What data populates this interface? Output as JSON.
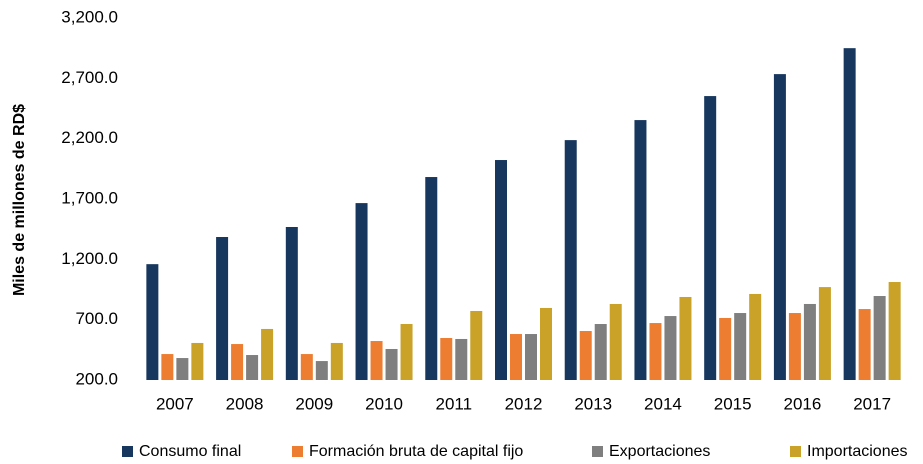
{
  "chart_data": {
    "type": "bar",
    "y_label": "Miles de millones de  RD$",
    "categories": [
      "2007",
      "2008",
      "2009",
      "2010",
      "2011",
      "2012",
      "2013",
      "2014",
      "2015",
      "2016",
      "2017"
    ],
    "series": [
      {
        "name": "Consumo final",
        "color": "#17375e",
        "values": [
          1160,
          1385,
          1468,
          1666,
          1882,
          2023,
          2188,
          2354,
          2553,
          2735,
          2950
        ]
      },
      {
        "name": "Formación bruta  de capital fijo",
        "color": "#ed7d31",
        "values": [
          415,
          498,
          415,
          523,
          548,
          581,
          606,
          672,
          714,
          755,
          788
        ]
      },
      {
        "name": "Exportaciones",
        "color": "#7f7f7f",
        "values": [
          382,
          407,
          357,
          457,
          540,
          581,
          664,
          730,
          755,
          830,
          896
        ]
      },
      {
        "name": "Importaciones",
        "color": "#c9a227",
        "values": [
          507,
          623,
          507,
          664,
          772,
          797,
          830,
          888,
          913,
          970,
          1012
        ]
      }
    ],
    "ylim": [
      200,
      3200
    ],
    "yticks": [
      {
        "value": 200,
        "label": "200.0"
      },
      {
        "value": 700,
        "label": "700.0"
      },
      {
        "value": 1200,
        "label": "1,200.0"
      },
      {
        "value": 1700,
        "label": "1,700.0"
      },
      {
        "value": 2200,
        "label": "2,200.0"
      },
      {
        "value": 2700,
        "label": "2,700.0"
      },
      {
        "value": 3200,
        "label": "3,200.0"
      }
    ],
    "grid": false,
    "legend": "bottom"
  }
}
